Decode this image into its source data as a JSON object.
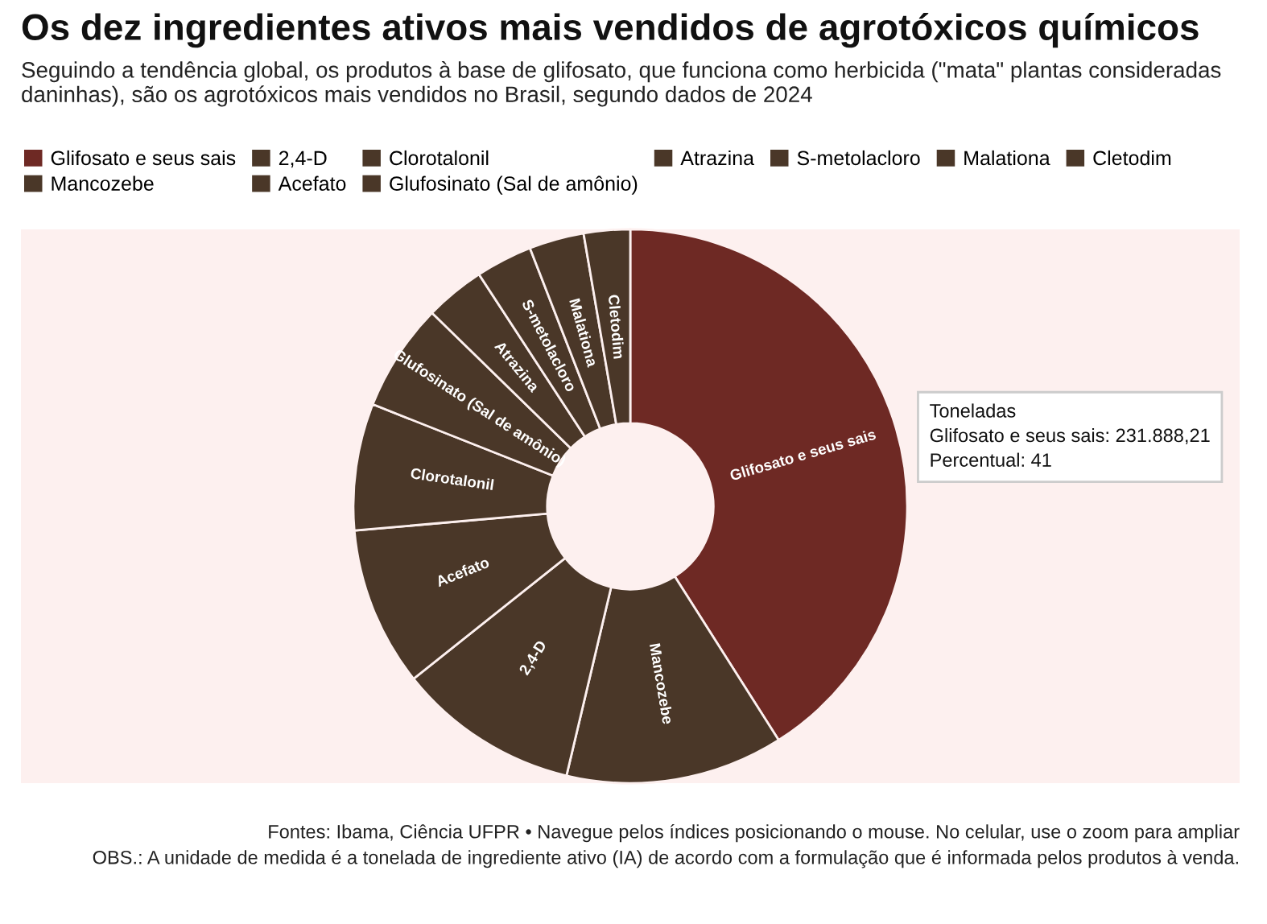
{
  "chart_data": {
    "type": "donut",
    "title": "Os dez ingredientes ativos mais vendidos de agrotóxicos químicos",
    "subtitle": "Seguindo a tendência global, os produtos à base de glifosato, que funciona como herbicida (\"mata\" plantas consideradas daninhas), são os agrotóxicos mais vendidos no Brasil, segundo dados de 2024",
    "categories": [
      "Glifosato e seus sais",
      "Mancozebe",
      "2,4-D",
      "Acefato",
      "Clorotalonil",
      "Glufosinato (Sal de amônio)",
      "Atrazina",
      "S-metolacloro",
      "Malationa",
      "Cletodim"
    ],
    "values": [
      41,
      12.7,
      10.6,
      9.3,
      7.4,
      6.3,
      3.5,
      3.3,
      3.2,
      2.7
    ],
    "colors": [
      "#6e2924",
      "#4a3728",
      "#4a3728",
      "#4a3728",
      "#4a3728",
      "#4a3728",
      "#4a3728",
      "#4a3728",
      "#4a3728",
      "#4a3728"
    ],
    "legend": "top",
    "annotations": [
      "Toneladas\nGlifosato e seus sais: 231.888,21\nPercentual: 41",
      "Fontes: Ibama, Ciência UFPR • Navegue pelos índices posicionando o mouse. No celular, use o zoom para ampliar",
      "OBS.: A unidade de medida é a tonelada de ingrediente ativo (IA) de acordo com a formulação que é informada pelos produtos à venda."
    ]
  }
}
